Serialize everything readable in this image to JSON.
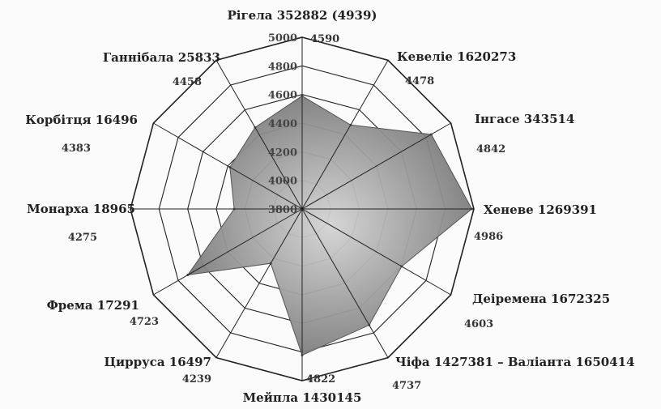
{
  "chart_data": {
    "type": "radar",
    "title": "",
    "r_range": [
      3800,
      5000
    ],
    "r_ticks": [
      {
        "value": 5000,
        "label": "5000"
      },
      {
        "value": 4800,
        "label": "4800"
      },
      {
        "value": 4600,
        "label": "4600"
      },
      {
        "value": 4400,
        "label": "4400"
      },
      {
        "value": 4200,
        "label": "4200"
      },
      {
        "value": 4000,
        "label": "4000"
      },
      {
        "value": 3800,
        "label": "3800"
      }
    ],
    "grid": true,
    "categories": [
      "Рігела 352882 (4939)",
      "Кевеліе 1620273",
      "Інгасе 343514",
      "Хеневе 1269391",
      "Деіремена 1672325",
      "Чіфа 1427381 – Валіанта 1650414",
      "Мейпла 1430145",
      "Цирруса 16497",
      "Фрема 17291",
      "Монарха 18965",
      "Корбітця 16496",
      "Ганнібала 25833"
    ],
    "value_labels": [
      "4590",
      "4478",
      "4842",
      "4986",
      "4603",
      "4737",
      "4822",
      "4239",
      "4723",
      "4275",
      "4383",
      "4458"
    ],
    "series": [
      {
        "values": [
          4590,
          4478,
          4842,
          4986,
          4603,
          4737,
          4822,
          4239,
          4723,
          4275,
          4383,
          4458
        ],
        "color": "#7a7a7a"
      }
    ]
  }
}
